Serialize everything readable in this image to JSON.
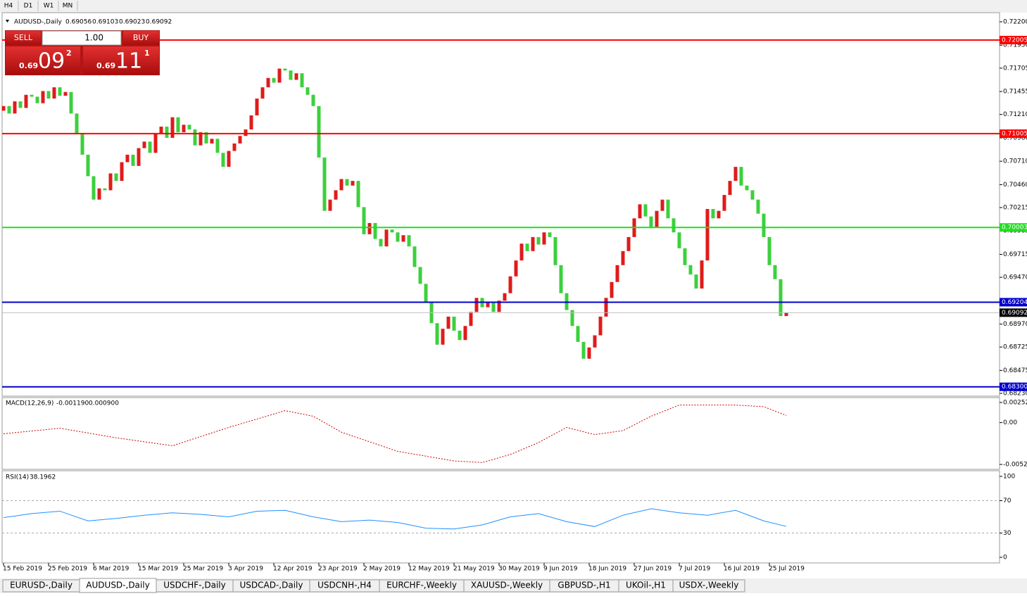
{
  "timeframes": [
    "H4",
    "D1",
    "W1",
    "MN"
  ],
  "trade_panel": {
    "sell": "SELL",
    "buy": "BUY",
    "lot": {
      "value": 1,
      "label": "1.00"
    },
    "bid": {
      "big": "0.69",
      "pips": "09",
      "fraction": "2"
    },
    "ask": {
      "big": "0.69",
      "pips": "11",
      "fraction": "1"
    }
  },
  "chart_data": [
    {
      "type": "candlestick",
      "symbol": "AUDUSD-,Daily",
      "ohlc": [
        0.69056,
        0.69103,
        0.69023,
        0.69092
      ],
      "colors": {
        "up": "#e01b1b",
        "down": "#3cd03c"
      },
      "open": [
        0.7125,
        0.713,
        0.7122,
        0.7135,
        0.7128,
        0.7142,
        0.714,
        0.7133,
        0.7146,
        0.7138,
        0.715,
        0.7141,
        0.7145,
        0.7122,
        0.71,
        0.7078,
        0.7055,
        0.703,
        0.7042,
        0.704,
        0.7058,
        0.705,
        0.707,
        0.7078,
        0.7066,
        0.7085,
        0.7092,
        0.708,
        0.71,
        0.7108,
        0.7096,
        0.7118,
        0.7102,
        0.711,
        0.7105,
        0.7088,
        0.7102,
        0.709,
        0.7095,
        0.708,
        0.7065,
        0.7082,
        0.709,
        0.7098,
        0.7105,
        0.712,
        0.7138,
        0.715,
        0.716,
        0.7155,
        0.717,
        0.7168,
        0.7158,
        0.7165,
        0.715,
        0.7142,
        0.713,
        0.7075,
        0.7018,
        0.703,
        0.704,
        0.7052,
        0.7045,
        0.705,
        0.7022,
        0.6993,
        0.7005,
        0.6988,
        0.698,
        0.6998,
        0.6995,
        0.6985,
        0.6992,
        0.698,
        0.6958,
        0.694,
        0.692,
        0.6898,
        0.6875,
        0.6892,
        0.6905,
        0.689,
        0.688,
        0.6895,
        0.691,
        0.6925,
        0.6915,
        0.692,
        0.691,
        0.6922,
        0.693,
        0.6948,
        0.6965,
        0.6983,
        0.6975,
        0.699,
        0.6982,
        0.6995,
        0.699,
        0.696,
        0.693,
        0.6912,
        0.6895,
        0.6878,
        0.686,
        0.6872,
        0.6885,
        0.6905,
        0.6925,
        0.6942,
        0.696,
        0.6975,
        0.699,
        0.701,
        0.7025,
        0.7012,
        0.7,
        0.7018,
        0.703,
        0.701,
        0.6995,
        0.6978,
        0.696,
        0.695,
        0.6935,
        0.6965,
        0.702,
        0.701,
        0.7018,
        0.7035,
        0.705,
        0.7065,
        0.7045,
        0.704,
        0.703,
        0.7015,
        0.699,
        0.696,
        0.6945,
        0.69056
      ],
      "close": [
        0.713,
        0.7122,
        0.7135,
        0.7128,
        0.7142,
        0.714,
        0.7133,
        0.7146,
        0.7138,
        0.715,
        0.7141,
        0.7145,
        0.7122,
        0.71,
        0.7078,
        0.7055,
        0.703,
        0.7042,
        0.704,
        0.7058,
        0.705,
        0.707,
        0.7078,
        0.7066,
        0.7085,
        0.7092,
        0.708,
        0.71,
        0.7108,
        0.7096,
        0.7118,
        0.7102,
        0.711,
        0.7105,
        0.7088,
        0.7102,
        0.709,
        0.7095,
        0.708,
        0.7065,
        0.7082,
        0.709,
        0.7098,
        0.7105,
        0.712,
        0.7138,
        0.715,
        0.716,
        0.7155,
        0.717,
        0.7168,
        0.7158,
        0.7165,
        0.715,
        0.7142,
        0.713,
        0.7075,
        0.7018,
        0.703,
        0.704,
        0.7052,
        0.7045,
        0.705,
        0.7022,
        0.6993,
        0.7005,
        0.6988,
        0.698,
        0.6998,
        0.6995,
        0.6985,
        0.6992,
        0.698,
        0.6958,
        0.694,
        0.692,
        0.6898,
        0.6875,
        0.6892,
        0.6905,
        0.689,
        0.688,
        0.6895,
        0.691,
        0.6925,
        0.6915,
        0.692,
        0.691,
        0.6922,
        0.693,
        0.6948,
        0.6965,
        0.6983,
        0.6975,
        0.699,
        0.6982,
        0.6995,
        0.699,
        0.696,
        0.693,
        0.6912,
        0.6895,
        0.6878,
        0.686,
        0.6872,
        0.6885,
        0.6905,
        0.6925,
        0.6942,
        0.696,
        0.6975,
        0.699,
        0.701,
        0.7025,
        0.7012,
        0.7,
        0.7018,
        0.703,
        0.701,
        0.6995,
        0.6978,
        0.696,
        0.695,
        0.6935,
        0.6965,
        0.702,
        0.701,
        0.7018,
        0.7035,
        0.705,
        0.7065,
        0.7045,
        0.704,
        0.703,
        0.7015,
        0.699,
        0.696,
        0.6945,
        0.69056,
        0.69092
      ],
      "ylim": [
        0.6823,
        0.722
      ],
      "yticks": [
        {
          "value": 0.722,
          "label": "0.72200"
        },
        {
          "value": 0.7195,
          "label": "0.71950"
        },
        0.71705,
        0.71455,
        {
          "value": 0.7121,
          "label": "0.71210"
        },
        {
          "value": 0.7096,
          "label": "0.70960"
        },
        {
          "value": 0.7071,
          "label": "0.70710"
        },
        {
          "value": 0.7046,
          "label": "0.70460"
        },
        0.70215,
        0.69965,
        0.69715,
        {
          "value": 0.6947,
          "label": "0.69470"
        },
        {
          "value": 0.6922,
          "label": "0.69220"
        },
        {
          "value": 0.6897,
          "label": "0.68970"
        },
        0.68725,
        0.68475,
        {
          "value": 0.6823,
          "label": "0.68230"
        }
      ],
      "levels": [
        {
          "value": 0.72005,
          "color": "#ff0000"
        },
        {
          "value": 0.71005,
          "color": "#ff0000"
        },
        {
          "value": 0.70003,
          "color": "#22dd22"
        },
        {
          "value": 0.69204,
          "color": "#0000cc"
        },
        {
          "value": {
            "value": 0.683,
            "label": "0.68300"
          },
          "color": "#0000cc"
        }
      ],
      "current": 0.69092,
      "date_labels": [
        "15 Feb 2019",
        "25 Feb 2019",
        "6 Mar 2019",
        "15 Mar 2019",
        "25 Mar 2019",
        "3 Apr 2019",
        "12 Apr 2019",
        "23 Apr 2019",
        "2 May 2019",
        "12 May 2019",
        "21 May 2019",
        "30 May 2019",
        "9 Jun 2019",
        "18 Jun 2019",
        "27 Jun 2019",
        "7 Jul 2019",
        "16 Jul 2019",
        "25 Jul 2019"
      ]
    },
    {
      "type": "line",
      "title": "MACD(12,26,9)",
      "indicator_values": [
        {
          "value": -0.00119,
          "label": "-0.001190"
        },
        {
          "value": 0.0009,
          "label": "0.000900"
        }
      ],
      "color": "#cc0000",
      "x": [
        0,
        10,
        20,
        30,
        40,
        50,
        55,
        60,
        70,
        80,
        85,
        90,
        95,
        100,
        105,
        110,
        115,
        120,
        125,
        130,
        135,
        139
      ],
      "values": [
        -0.0014,
        -0.0007,
        -0.0019,
        -0.0029,
        -0.0006,
        0.0015,
        0.0008,
        -0.0012,
        -0.0036,
        -0.0048,
        -0.005,
        -0.004,
        -0.0025,
        -0.0006,
        -0.0015,
        -0.001,
        0.0008,
        0.0022,
        0.0022,
        0.0022,
        0.002,
        0.0009
      ],
      "ylim": [
        -0.005238,
        0.002522
      ],
      "yticks": [
        0.002522,
        {
          "value": 0,
          "label": "0.00"
        },
        -0.005238
      ]
    },
    {
      "type": "line",
      "title": "RSI(14)",
      "last": 38.1962,
      "color": "#1e90ff",
      "x": [
        0,
        5,
        10,
        15,
        20,
        25,
        30,
        35,
        40,
        45,
        50,
        55,
        60,
        65,
        70,
        75,
        80,
        85,
        90,
        95,
        100,
        105,
        110,
        115,
        120,
        125,
        130,
        135,
        139
      ],
      "values": [
        49,
        54,
        57,
        45,
        48,
        52,
        55,
        53,
        50,
        57,
        58,
        50,
        44,
        46,
        43,
        36,
        35,
        40,
        50,
        54,
        44,
        38,
        52,
        60,
        55,
        52,
        58,
        45,
        38.1962
      ],
      "ylim": [
        0,
        100
      ],
      "yticks": [
        100,
        70,
        30,
        0
      ]
    }
  ],
  "tabs": [
    "EURUSD-,Daily",
    "AUDUSD-,Daily",
    "USDCHF-,Daily",
    "USDCAD-,Daily",
    "USDCNH-,H4",
    "EURCHF-,Weekly",
    "XAUUSD-,Weekly",
    "GBPUSD-,H1",
    "UKOil-,H1",
    "USDX-,Weekly"
  ],
  "active_tab": 1
}
